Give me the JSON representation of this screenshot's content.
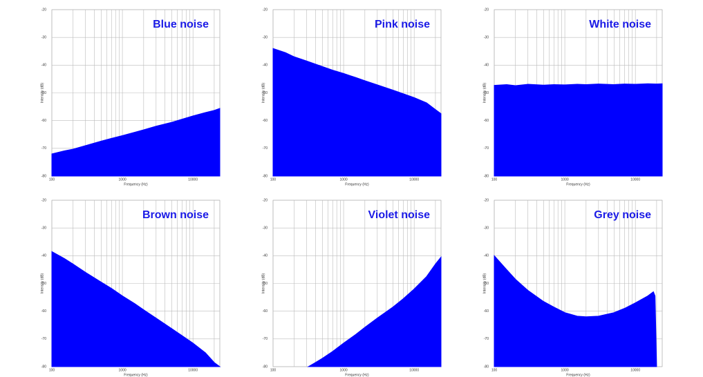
{
  "chart_data": [
    {
      "type": "area",
      "title": "Blue noise",
      "x_label": "Frequency (Hz)",
      "y_label": "Intensity (dB)",
      "color": "#0000ff",
      "xscale": "log",
      "grid": true,
      "xlim": [
        100,
        24000
      ],
      "ylim": [
        -80,
        -20
      ],
      "xticks": [
        100,
        1000,
        10000
      ],
      "minor_xticks": [
        200,
        300,
        400,
        500,
        600,
        700,
        800,
        900,
        2000,
        3000,
        4000,
        5000,
        6000,
        7000,
        8000,
        9000,
        20000
      ],
      "yticks": [
        -20,
        -30,
        -40,
        -50,
        -60,
        -70,
        -80
      ],
      "x": [
        100,
        150,
        200,
        300,
        500,
        700,
        1000,
        1500,
        2000,
        3000,
        5000,
        7000,
        10000,
        15000,
        20000,
        24000
      ],
      "values": [
        -72,
        -70.9,
        -70.3,
        -69,
        -67.4,
        -66.4,
        -65.4,
        -64.2,
        -63.3,
        -62,
        -60.6,
        -59.5,
        -58.3,
        -57.1,
        -56.3,
        -55.6
      ]
    },
    {
      "type": "area",
      "title": "Pink noise",
      "x_label": "Frequency (Hz)",
      "y_label": "Intensity (dB)",
      "color": "#0000ff",
      "xscale": "log",
      "grid": true,
      "xlim": [
        100,
        24000
      ],
      "ylim": [
        -80,
        -20
      ],
      "xticks": [
        100,
        1000,
        10000
      ],
      "minor_xticks": [
        200,
        300,
        400,
        500,
        600,
        700,
        800,
        900,
        2000,
        3000,
        4000,
        5000,
        6000,
        7000,
        8000,
        9000,
        20000
      ],
      "yticks": [
        -20,
        -30,
        -40,
        -50,
        -60,
        -70,
        -80
      ],
      "x": [
        100,
        150,
        200,
        300,
        500,
        700,
        1000,
        1500,
        2000,
        3000,
        5000,
        7000,
        10000,
        15000,
        20000,
        24000
      ],
      "values": [
        -34,
        -35.5,
        -37,
        -38.5,
        -40.5,
        -41.8,
        -43,
        -44.5,
        -45.6,
        -47.1,
        -49,
        -50.3,
        -51.7,
        -53.6,
        -56,
        -57.5
      ]
    },
    {
      "type": "area",
      "title": "White noise",
      "x_label": "Frequency (Hz)",
      "y_label": "Intensity (dB)",
      "color": "#0000ff",
      "xscale": "log",
      "grid": true,
      "xlim": [
        100,
        24000
      ],
      "ylim": [
        -80,
        -20
      ],
      "xticks": [
        100,
        1000,
        10000
      ],
      "minor_xticks": [
        200,
        300,
        400,
        500,
        600,
        700,
        800,
        900,
        2000,
        3000,
        4000,
        5000,
        6000,
        7000,
        8000,
        9000,
        20000
      ],
      "yticks": [
        -20,
        -30,
        -40,
        -50,
        -60,
        -70,
        -80
      ],
      "x": [
        100,
        150,
        200,
        300,
        500,
        700,
        1000,
        1500,
        2000,
        3000,
        5000,
        7000,
        10000,
        15000,
        20000,
        24000
      ],
      "values": [
        -47.3,
        -47,
        -47.4,
        -46.9,
        -47.2,
        -47,
        -47.1,
        -46.9,
        -47,
        -46.8,
        -47,
        -46.8,
        -46.9,
        -46.7,
        -46.8,
        -46.7
      ]
    },
    {
      "type": "area",
      "title": "Brown noise",
      "x_label": "Frequency (Hz)",
      "y_label": "Intensity (dB)",
      "color": "#0000ff",
      "xscale": "log",
      "grid": true,
      "xlim": [
        100,
        24000
      ],
      "ylim": [
        -80,
        -20
      ],
      "xticks": [
        100,
        1000,
        10000
      ],
      "minor_xticks": [
        200,
        300,
        400,
        500,
        600,
        700,
        800,
        900,
        2000,
        3000,
        4000,
        5000,
        6000,
        7000,
        8000,
        9000,
        20000
      ],
      "yticks": [
        -20,
        -30,
        -40,
        -50,
        -60,
        -70,
        -80
      ],
      "x": [
        100,
        150,
        200,
        300,
        500,
        700,
        1000,
        1500,
        2000,
        3000,
        5000,
        7000,
        10000,
        15000,
        20000,
        24000
      ],
      "values": [
        -38.5,
        -41,
        -43,
        -46,
        -49.5,
        -51.8,
        -54.5,
        -57.3,
        -59.5,
        -62.5,
        -66.3,
        -68.8,
        -71.5,
        -75,
        -78.5,
        -80
      ]
    },
    {
      "type": "area",
      "title": "Violet noise",
      "x_label": "Frequency (Hz)",
      "y_label": "Intensity (dB)",
      "color": "#0000ff",
      "xscale": "log",
      "grid": true,
      "xlim": [
        100,
        24000
      ],
      "ylim": [
        -80,
        -20
      ],
      "xticks": [
        100,
        1000,
        10000
      ],
      "minor_xticks": [
        200,
        300,
        400,
        500,
        600,
        700,
        800,
        900,
        2000,
        3000,
        4000,
        5000,
        6000,
        7000,
        8000,
        9000,
        20000
      ],
      "yticks": [
        -20,
        -30,
        -40,
        -50,
        -60,
        -70,
        -80
      ],
      "x": [
        316,
        400,
        500,
        700,
        1000,
        1500,
        2000,
        3000,
        5000,
        7000,
        10000,
        15000,
        20000,
        24000
      ],
      "values": [
        -80,
        -78.5,
        -77,
        -74.5,
        -71.5,
        -68.3,
        -65.8,
        -62.5,
        -58.5,
        -55.5,
        -52,
        -47.5,
        -43,
        -40.5
      ]
    },
    {
      "type": "area",
      "title": "Grey noise",
      "x_label": "Frequency (Hz)",
      "y_label": "Intensity (dB)",
      "color": "#0000ff",
      "xscale": "log",
      "grid": true,
      "xlim": [
        100,
        24000
      ],
      "ylim": [
        -80,
        -20
      ],
      "xticks": [
        100,
        1000,
        10000
      ],
      "minor_xticks": [
        200,
        300,
        400,
        500,
        600,
        700,
        800,
        900,
        2000,
        3000,
        4000,
        5000,
        6000,
        7000,
        8000,
        9000,
        20000
      ],
      "yticks": [
        -20,
        -30,
        -40,
        -50,
        -60,
        -70,
        -80
      ],
      "x": [
        100,
        150,
        200,
        300,
        500,
        700,
        1000,
        1500,
        2000,
        3000,
        5000,
        7000,
        10000,
        15000,
        18000,
        19000,
        20000
      ],
      "values": [
        -40,
        -45,
        -48.5,
        -52.5,
        -56.5,
        -58.5,
        -60.5,
        -61.8,
        -62,
        -61.8,
        -60.5,
        -59,
        -57,
        -54.5,
        -53,
        -54.5,
        -80
      ]
    }
  ]
}
